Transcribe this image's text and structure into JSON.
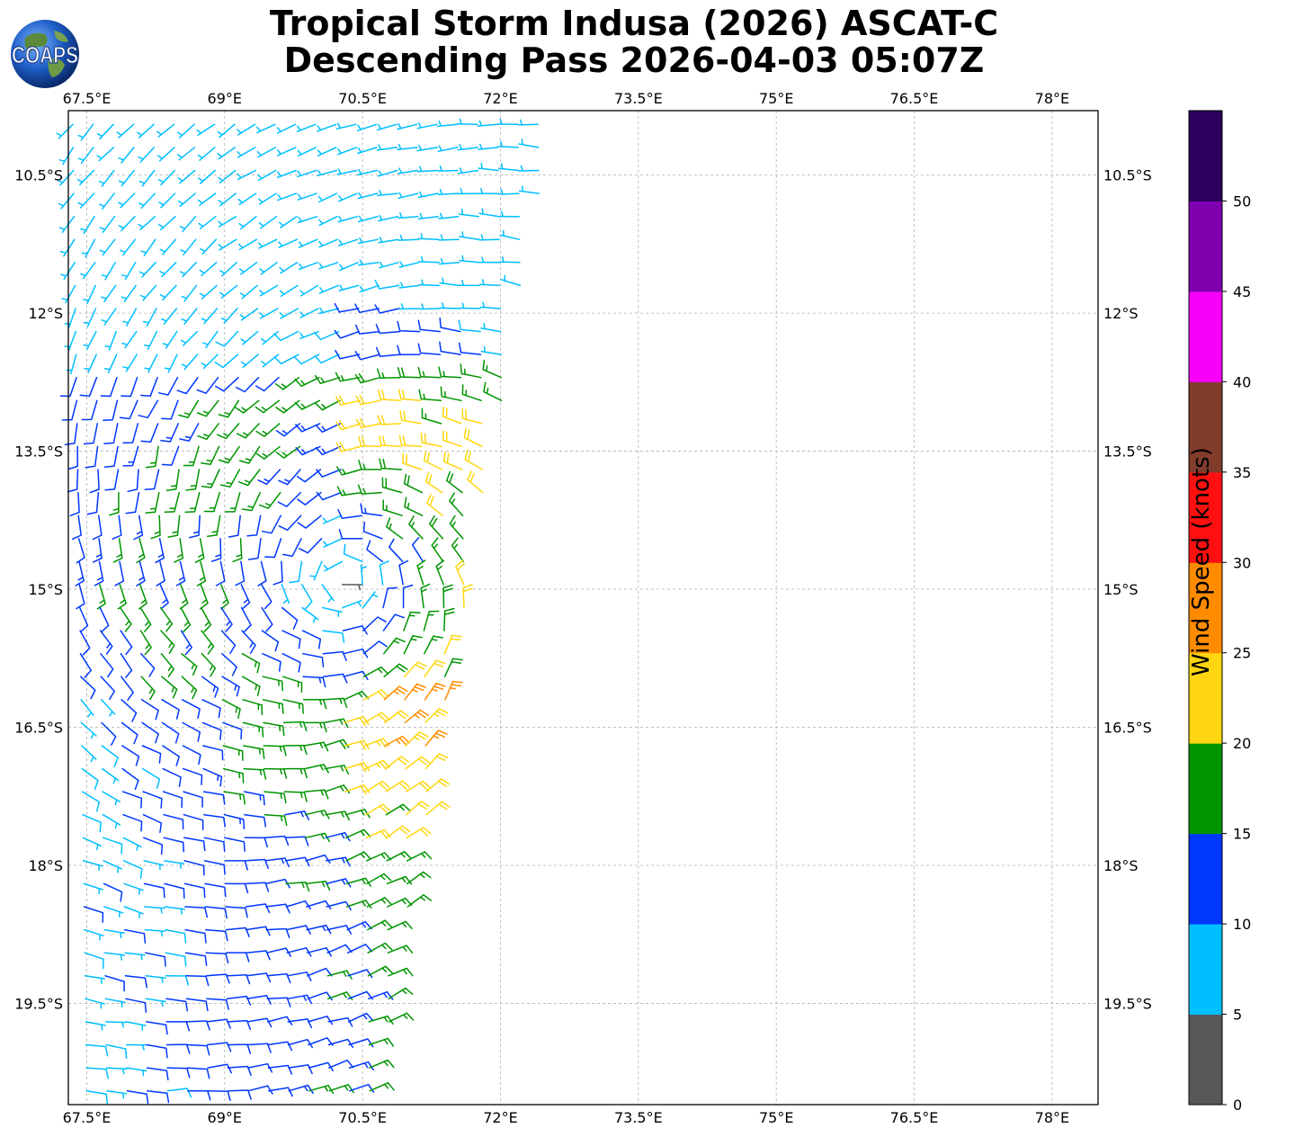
{
  "title": {
    "line1": "Tropical Storm Indusa (2026) ASCAT-C",
    "line2": "Descending Pass 2026-04-03 05:07Z"
  },
  "logo": {
    "text": "COAPS"
  },
  "map": {
    "lon_ticks": [
      "67.5°E",
      "69°E",
      "70.5°E",
      "72°E",
      "73.5°E",
      "75°E",
      "76.5°E",
      "78°E"
    ],
    "lon_values": [
      67.5,
      69,
      70.5,
      72,
      73.5,
      75,
      76.5,
      78
    ],
    "lat_ticks": [
      "10.5°S",
      "12°S",
      "13.5°S",
      "15°S",
      "16.5°S",
      "18°S",
      "19.5°S"
    ],
    "lat_values": [
      -10.5,
      -12,
      -13.5,
      -15,
      -16.5,
      -18,
      -19.5
    ],
    "lon_range": [
      67.3,
      78.5
    ],
    "lat_range": [
      -9.8,
      -20.6
    ],
    "storm_center": {
      "lon": 70.3,
      "lat": -14.9
    },
    "grid": true,
    "symbol": "wind barbs (knots)"
  },
  "colorbar": {
    "label": "Wind Speed (knots)",
    "tick_labels": [
      "0",
      "5",
      "10",
      "15",
      "20",
      "25",
      "30",
      "35",
      "40",
      "45",
      "50"
    ],
    "bins": [
      {
        "min": 0,
        "max": 5,
        "color": "#585858"
      },
      {
        "min": 5,
        "max": 10,
        "color": "#00bfff"
      },
      {
        "min": 10,
        "max": 15,
        "color": "#0037fd"
      },
      {
        "min": 15,
        "max": 20,
        "color": "#009500"
      },
      {
        "min": 20,
        "max": 25,
        "color": "#ffd610"
      },
      {
        "min": 25,
        "max": 30,
        "color": "#ff8c00"
      },
      {
        "min": 30,
        "max": 35,
        "color": "#ff1010"
      },
      {
        "min": 35,
        "max": 40,
        "color": "#823c2c"
      },
      {
        "min": 40,
        "max": 45,
        "color": "#f700f7"
      },
      {
        "min": 45,
        "max": 50,
        "color": "#8000b0"
      },
      {
        "min": 50,
        "max": 55,
        "color": "#2b005e"
      }
    ]
  }
}
